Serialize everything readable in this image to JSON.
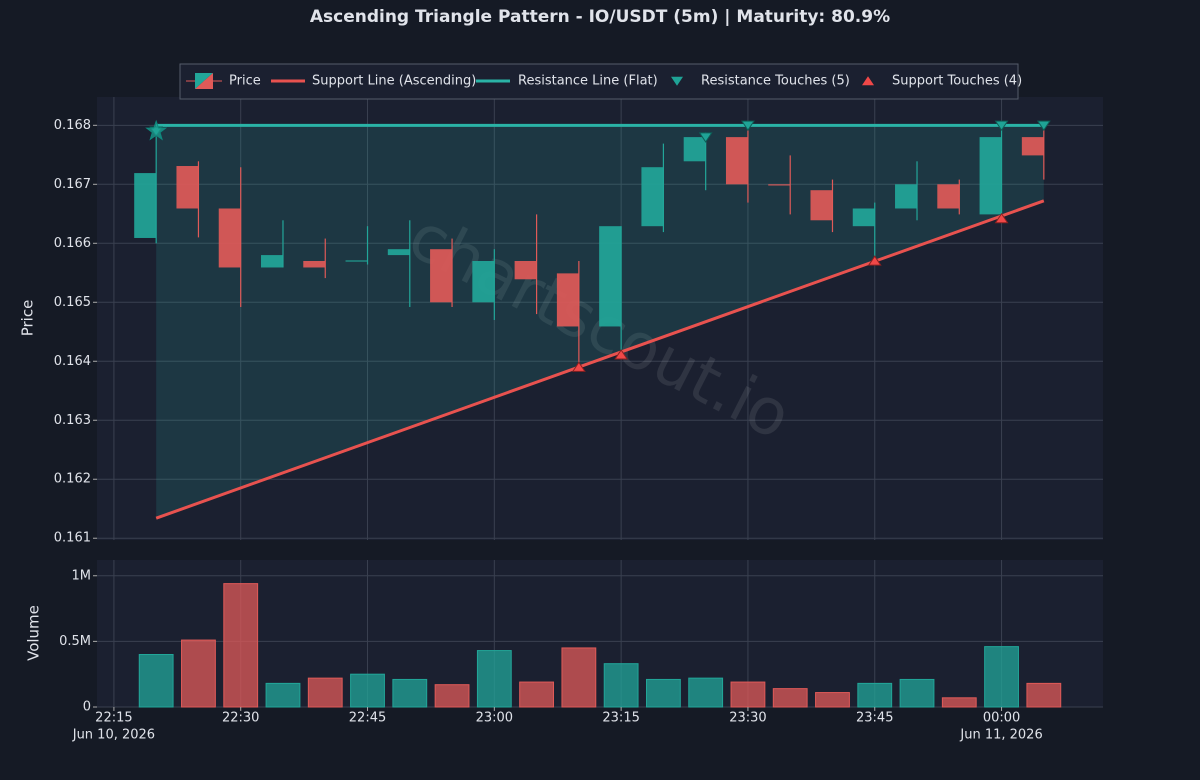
{
  "chart_data": {
    "type": "candlestick",
    "title": "Ascending Triangle Pattern - IO/USDT (5m) | Maturity: 80.9%",
    "ylabel": "Price",
    "volume_ylabel": "Volume",
    "watermark": "chartscout.io",
    "legend_price": "Price",
    "up_color": "#22a699",
    "down_color": "#e05a58",
    "grid": true,
    "x": [
      "2026-06-10T22:20",
      "2026-06-10T22:25",
      "2026-06-10T22:30",
      "2026-06-10T22:35",
      "2026-06-10T22:40",
      "2026-06-10T22:45",
      "2026-06-10T22:50",
      "2026-06-10T22:55",
      "2026-06-10T23:00",
      "2026-06-10T23:05",
      "2026-06-10T23:10",
      "2026-06-10T23:15",
      "2026-06-10T23:20",
      "2026-06-10T23:25",
      "2026-06-10T23:30",
      "2026-06-10T23:35",
      "2026-06-10T23:40",
      "2026-06-10T23:45",
      "2026-06-10T23:50",
      "2026-06-10T23:55",
      "2026-06-11T00:00",
      "2026-06-11T00:05"
    ],
    "open": [
      0.16609,
      0.16731,
      0.16659,
      0.16559,
      0.1657,
      0.16569,
      0.1658,
      0.1659,
      0.165,
      0.1657,
      0.16549,
      0.16459,
      0.16629,
      0.16739,
      0.1678,
      0.167,
      0.1669,
      0.16629,
      0.16659,
      0.167,
      0.16649,
      0.1678
    ],
    "high": [
      0.1679,
      0.16739,
      0.16729,
      0.16639,
      0.16608,
      0.16629,
      0.16639,
      0.16608,
      0.1659,
      0.16649,
      0.1657,
      0.16629,
      0.16769,
      0.16788,
      0.16795,
      0.16749,
      0.16708,
      0.16669,
      0.16739,
      0.16708,
      0.168,
      0.16795
    ],
    "low": [
      0.166,
      0.1661,
      0.16492,
      0.16559,
      0.16541,
      0.16564,
      0.16492,
      0.16492,
      0.1647,
      0.1648,
      0.1639,
      0.16419,
      0.16619,
      0.1669,
      0.16669,
      0.16649,
      0.16619,
      0.1657,
      0.16639,
      0.16649,
      0.16639,
      0.16708
    ],
    "close": [
      0.16719,
      0.16659,
      0.16559,
      0.1658,
      0.16559,
      0.16571,
      0.1659,
      0.165,
      0.1657,
      0.16539,
      0.16459,
      0.16629,
      0.16729,
      0.1678,
      0.167,
      0.16699,
      0.16639,
      0.16659,
      0.167,
      0.16659,
      0.1678,
      0.16749
    ],
    "volume": [
      400000,
      510000,
      940000,
      180000,
      220000,
      250000,
      210000,
      170000,
      430000,
      190000,
      450000,
      330000,
      210000,
      220000,
      190000,
      140000,
      110000,
      180000,
      210000,
      70000,
      460000,
      180000
    ],
    "xlim": [
      "2026-06-10T22:13",
      "2026-06-11T00:12"
    ],
    "xticks": [
      {
        "value": "2026-06-10T22:15",
        "label": "22:15"
      },
      {
        "value": "2026-06-10T22:30",
        "label": "22:30"
      },
      {
        "value": "2026-06-10T22:45",
        "label": "22:45"
      },
      {
        "value": "2026-06-10T23:00",
        "label": "23:00"
      },
      {
        "value": "2026-06-10T23:15",
        "label": "23:15"
      },
      {
        "value": "2026-06-10T23:30",
        "label": "23:30"
      },
      {
        "value": "2026-06-10T23:45",
        "label": "23:45"
      },
      {
        "value": "2026-06-11T00:00",
        "label": "00:00"
      }
    ],
    "x_date_labels": [
      {
        "at": "2026-06-10T22:15",
        "label": "Jun 10, 2026"
      },
      {
        "at": "2026-06-11T00:00",
        "label": "Jun 11, 2026"
      }
    ],
    "ylim": [
      0.16097,
      0.16848
    ],
    "yticks": [
      0.161,
      0.162,
      0.163,
      0.164,
      0.165,
      0.166,
      0.167,
      0.168
    ],
    "volume_ylim": [
      0,
      1120000
    ],
    "volume_yticks": [
      {
        "value": 0,
        "label": "0"
      },
      {
        "value": 500000,
        "label": "0.5M"
      },
      {
        "value": 1000000,
        "label": "1M"
      }
    ],
    "support_line": {
      "name": "Support Line (Ascending)",
      "color": "#e8524f",
      "x": [
        "2026-06-10T22:20",
        "2026-06-11T00:05"
      ],
      "values": [
        0.16134,
        0.16672
      ]
    },
    "resistance_line": {
      "name": "Resistance Line (Flat)",
      "color": "#2ab3a6",
      "x": [
        "2026-06-10T22:20",
        "2026-06-11T00:05"
      ],
      "values": [
        0.168,
        0.168
      ]
    },
    "resistance_touches": {
      "name": "Resistance Touches (5)",
      "color": "#1fa396",
      "x": [
        "2026-06-10T22:20",
        "2026-06-10T23:25",
        "2026-06-10T23:30",
        "2026-06-11T00:00",
        "2026-06-11T00:05"
      ],
      "values": [
        0.1679,
        0.1678,
        0.168,
        0.168,
        0.168
      ]
    },
    "support_touches": {
      "name": "Support Touches (4)",
      "color": "#f04848",
      "x": [
        "2026-06-10T23:10",
        "2026-06-10T23:15",
        "2026-06-10T23:45",
        "2026-06-11T00:00"
      ],
      "values": [
        0.1639,
        0.16411,
        0.1657,
        0.16642
      ]
    },
    "pattern_start": {
      "x": "2026-06-10T22:20",
      "value": 0.1679,
      "color": "#1fa396"
    }
  }
}
